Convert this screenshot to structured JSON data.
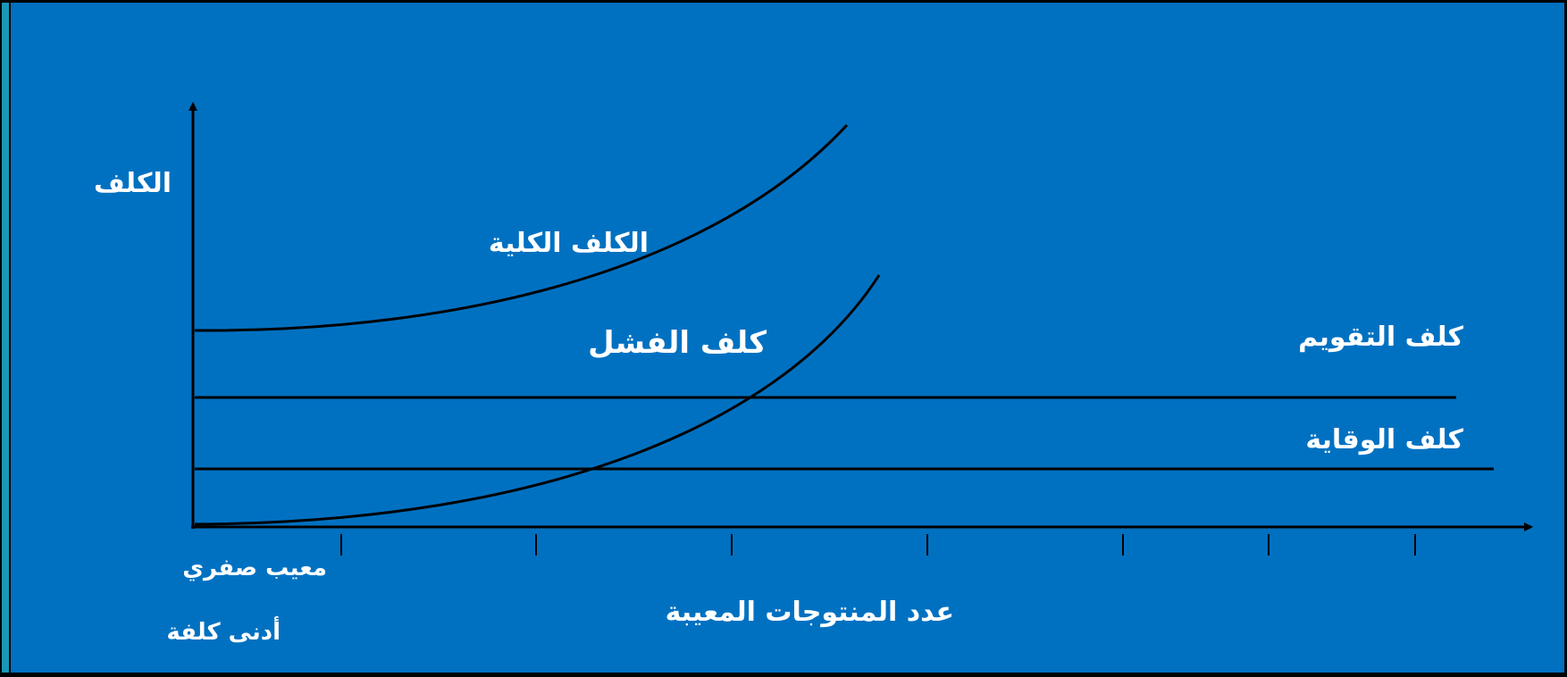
{
  "diagram": {
    "y_axis_label": "الكلف",
    "x_axis_label": "عدد المنتوجات المعيبة",
    "origin_label_1": "معيب صفري",
    "origin_label_2": "أدنى كلفة",
    "curves": {
      "total_cost": "الكلف الكلية",
      "failure_cost": "كلف الفشل",
      "appraisal_cost": "كلف التقويم",
      "prevention_cost": "كلف الوقاية"
    }
  },
  "colors": {
    "background": "#0071c1",
    "lines": "#000000",
    "text": "#ffffff",
    "frame_accent": "#1a98b8"
  }
}
